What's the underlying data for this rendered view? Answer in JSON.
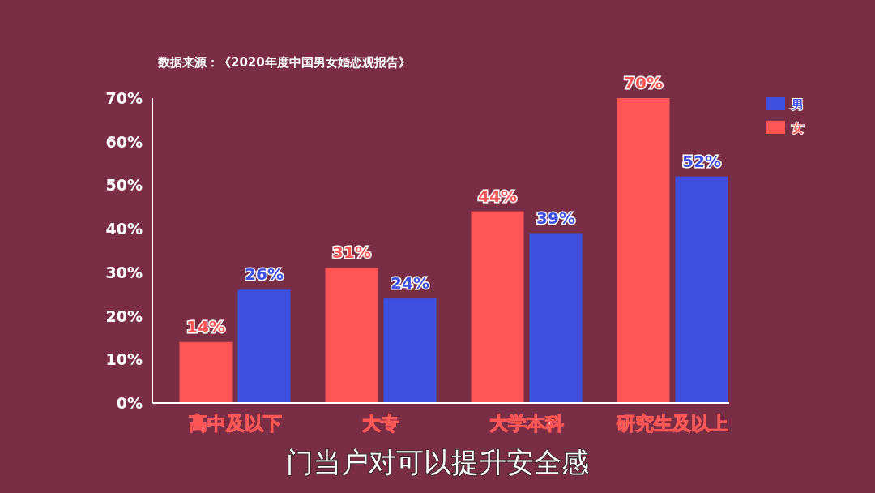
{
  "chart_data": {
    "type": "bar",
    "title": "数据来源：《2020年度中国男女婚恋观报告》",
    "annotations": [
      "门当户对可以提升安全感"
    ],
    "categories": [
      "高中及以下",
      "大专",
      "大学本科",
      "研究生及以上"
    ],
    "series": [
      {
        "name": "男",
        "color": "#3f4fe0",
        "values": [
          26,
          24,
          39,
          52
        ],
        "value_labels": [
          "26%",
          "24%",
          "39%",
          "52%"
        ]
      },
      {
        "name": "女",
        "color": "#ff5555",
        "values": [
          14,
          31,
          44,
          70
        ],
        "value_labels": [
          "14%",
          "31%",
          "44%",
          "70%"
        ]
      }
    ],
    "ylim": [
      0,
      70
    ],
    "yticks": [
      {
        "value": 0,
        "label": "0%"
      },
      {
        "value": 10,
        "label": "10%"
      },
      {
        "value": 20,
        "label": "20%"
      },
      {
        "value": 30,
        "label": "30%"
      },
      {
        "value": 40,
        "label": "40%"
      },
      {
        "value": 50,
        "label": "50%"
      },
      {
        "value": 60,
        "label": "60%"
      },
      {
        "value": 70,
        "label": "70%"
      }
    ],
    "grid": false,
    "legend": "top right"
  }
}
